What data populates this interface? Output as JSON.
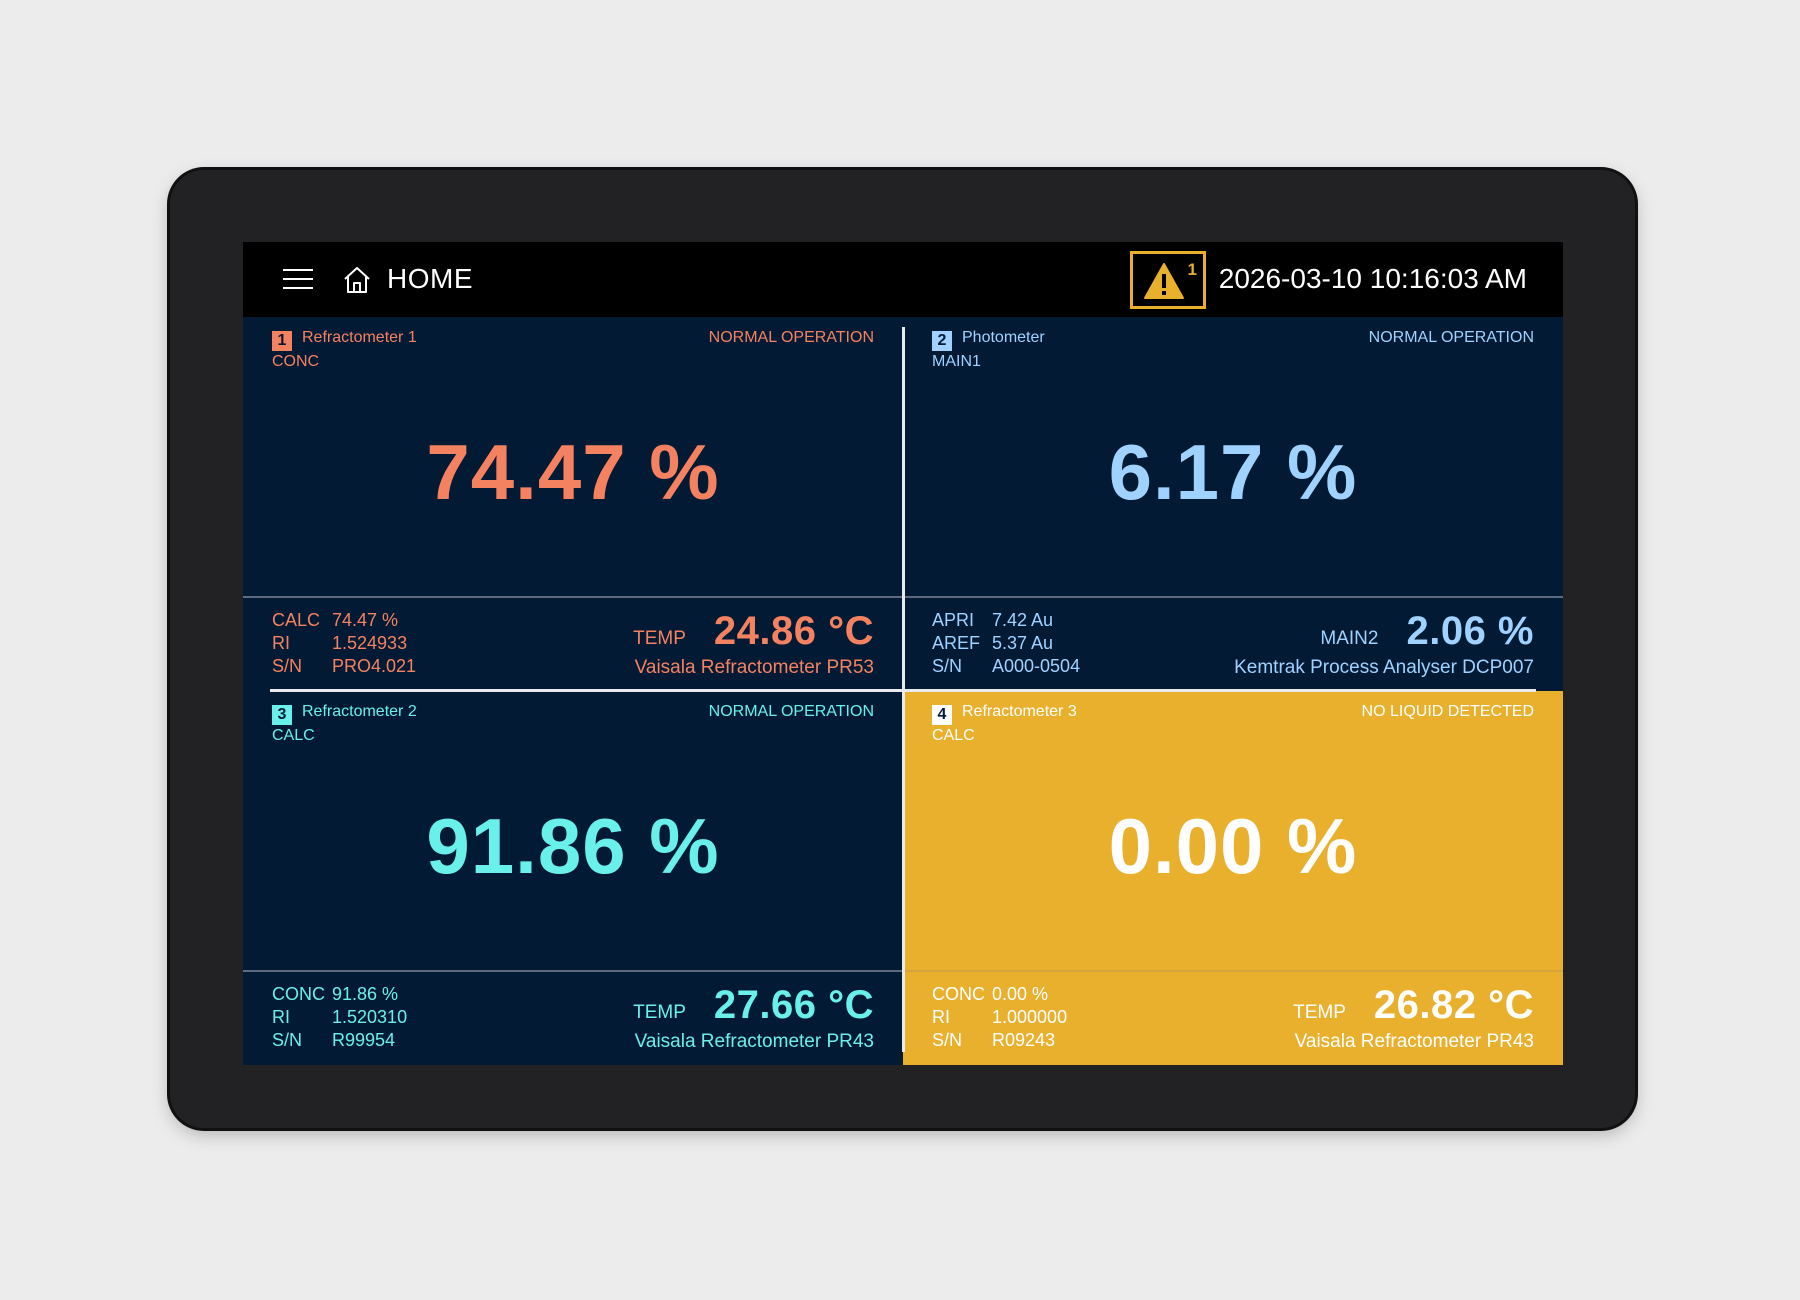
{
  "header": {
    "title": "HOME",
    "alarm_count": "1",
    "datetime": "2026-03-10 10:16:03 AM"
  },
  "panels": [
    {
      "index": "1",
      "name": "Refractometer 1",
      "tag": "CONC",
      "status": "NORMAL OPERATION",
      "value": "74.47 %",
      "details": [
        {
          "key": "CALC",
          "value": "74.47 %"
        },
        {
          "key": "RI",
          "value": "1.524933"
        },
        {
          "key": "S/N",
          "value": "PRO4.021"
        }
      ],
      "secondary_label": "TEMP",
      "secondary_value": "24.86 °C",
      "device": "Vaisala Refractometer PR53",
      "accent": "#f48260"
    },
    {
      "index": "2",
      "name": "Photometer",
      "tag": "MAIN1",
      "status": "NORMAL OPERATION",
      "value": "6.17 %",
      "details": [
        {
          "key": "APRI",
          "value": "7.42 Au"
        },
        {
          "key": "AREF",
          "value": "5.37 Au"
        },
        {
          "key": "S/N",
          "value": "A000-0504"
        }
      ],
      "secondary_label": "MAIN2",
      "secondary_value": "2.06 %",
      "device": "Kemtrak Process Analyser DCP007",
      "accent": "#9fd2ff"
    },
    {
      "index": "3",
      "name": "Refractometer 2",
      "tag": "CALC",
      "status": "NORMAL OPERATION",
      "value": "91.86 %",
      "details": [
        {
          "key": "CONC",
          "value": "91.86 %"
        },
        {
          "key": "RI",
          "value": "1.520310"
        },
        {
          "key": "S/N",
          "value": "R99954"
        }
      ],
      "secondary_label": "TEMP",
      "secondary_value": "27.66 °C",
      "device": "Vaisala Refractometer PR43",
      "accent": "#69f0ea"
    },
    {
      "index": "4",
      "name": "Refractometer 3",
      "tag": "CALC",
      "status": "NO LIQUID DETECTED",
      "value": "0.00 %",
      "details": [
        {
          "key": "CONC",
          "value": "0.00 %"
        },
        {
          "key": "RI",
          "value": "1.000000"
        },
        {
          "key": "S/N",
          "value": "R09243"
        }
      ],
      "secondary_label": "TEMP",
      "secondary_value": "26.82 °C",
      "device": "Vaisala Refractometer PR43",
      "accent": "#ffffff",
      "background": "#e9b02e"
    }
  ],
  "icons": {
    "menu": "menu-icon",
    "home": "home-icon",
    "alarm": "warning-icon"
  }
}
